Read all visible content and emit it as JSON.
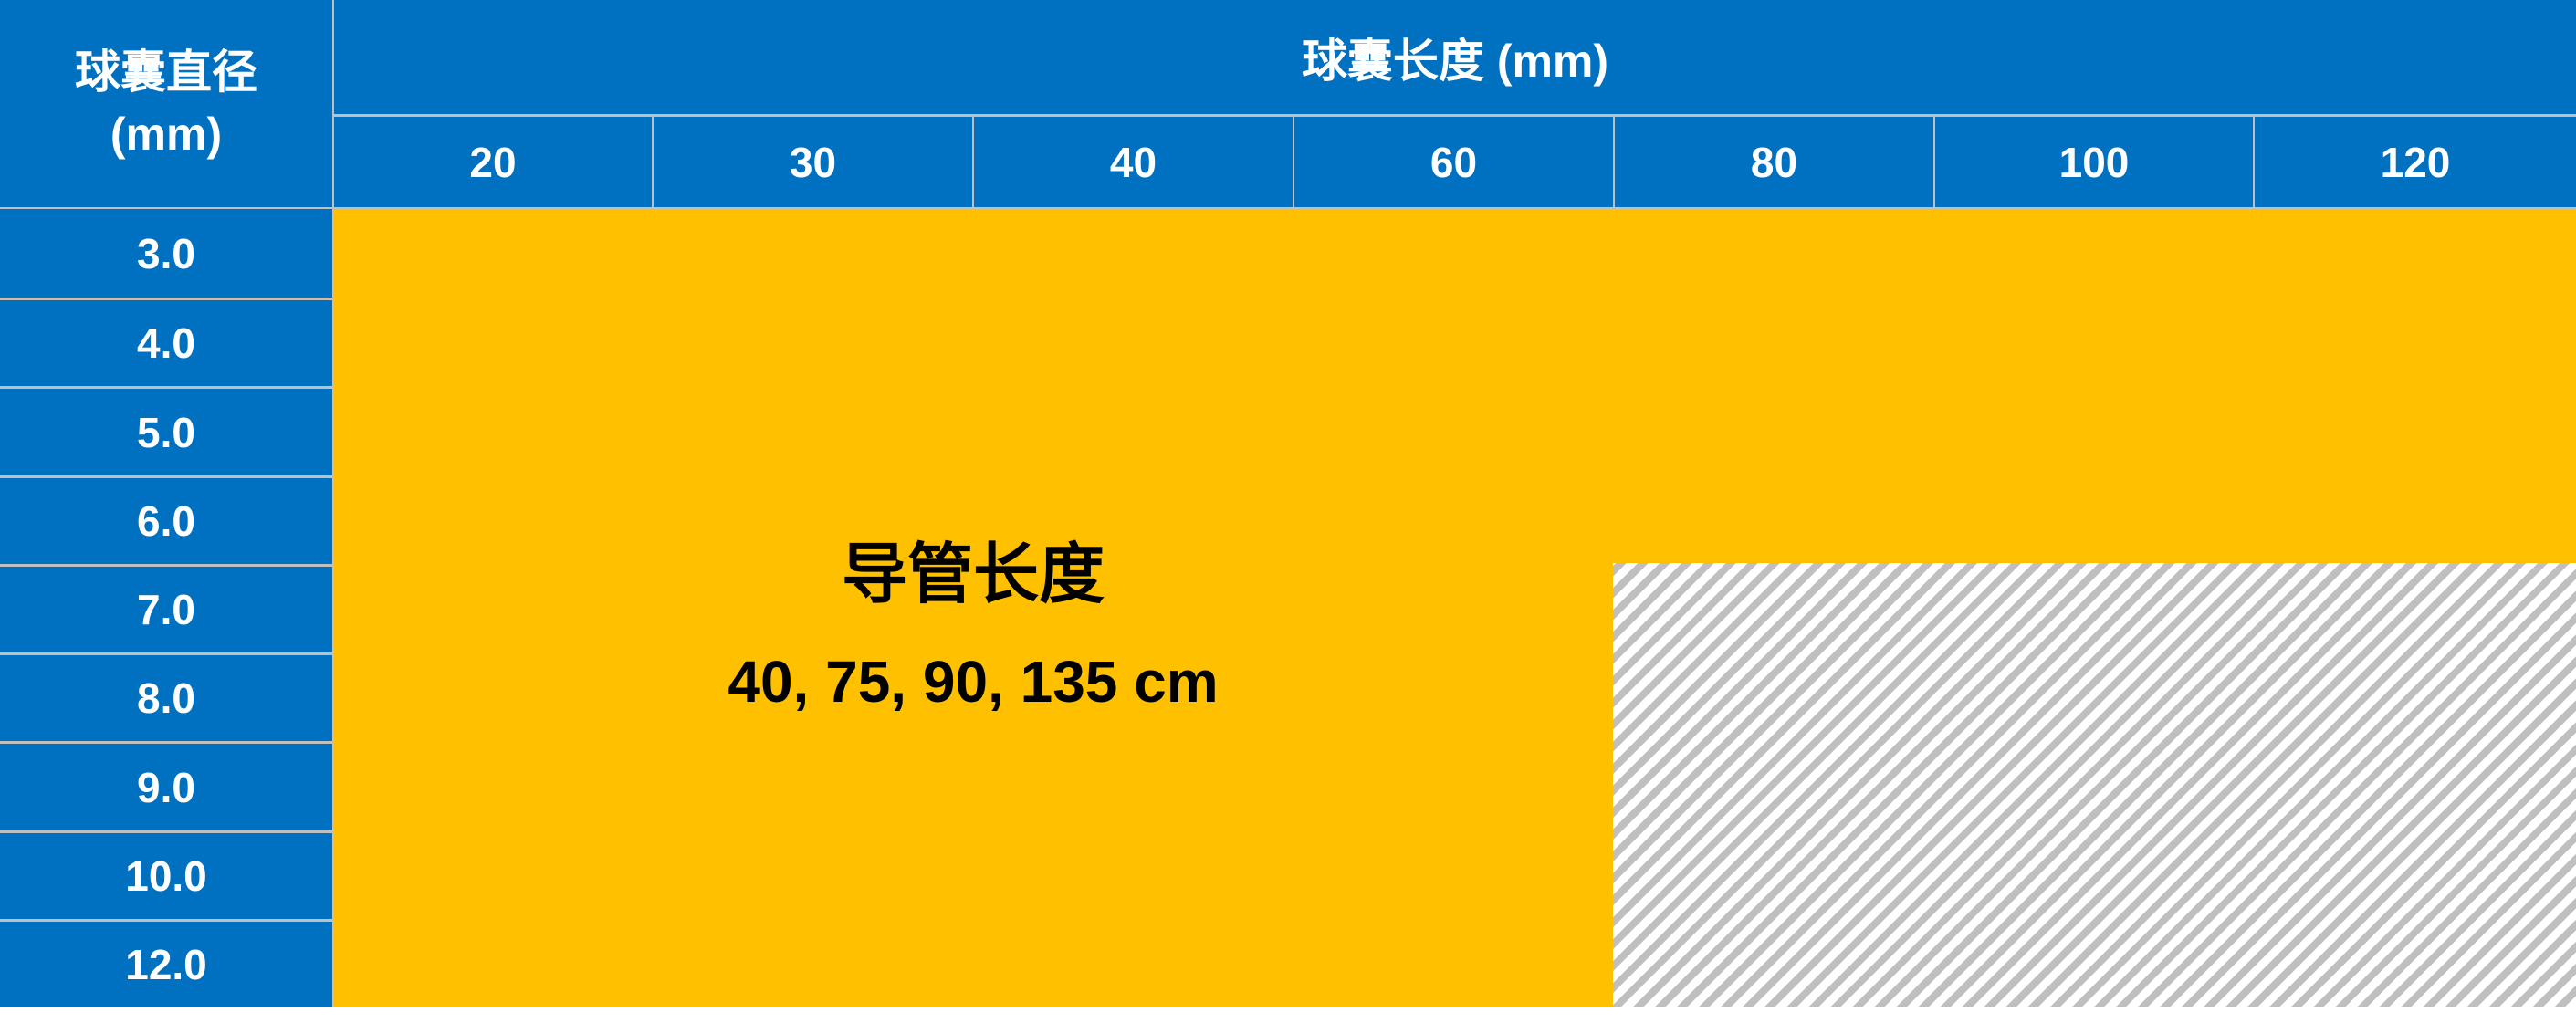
{
  "header": {
    "row_header_title": "球囊直径",
    "row_header_unit": "(mm)",
    "column_group_title": "球囊长度 (mm)",
    "columns": [
      "20",
      "30",
      "40",
      "60",
      "80",
      "100",
      "120"
    ]
  },
  "rows": [
    "3.0",
    "4.0",
    "5.0",
    "6.0",
    "7.0",
    "8.0",
    "9.0",
    "10.0",
    "12.0"
  ],
  "availability": {
    "label": "导管长度",
    "values": "40, 75, 90, 135 cm",
    "unavailable_region": "diameter 7.0–12.0 mm with length 80–120 mm"
  },
  "colors": {
    "header_blue": "#0070c0",
    "available_yellow": "#ffc000",
    "unavailable_hatch": "#bfbfbf",
    "border": "#c0c0c0"
  }
}
